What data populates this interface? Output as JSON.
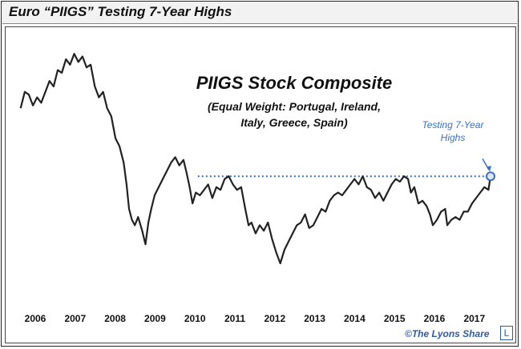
{
  "page": {
    "title": "Euro “PIIGS” Testing 7-Year Highs",
    "credit": "©The Lyons Share",
    "logo_letter": "L"
  },
  "chart_data": {
    "type": "line",
    "title": "PIIGS Stock Composite",
    "subtitle_line1": "(Equal Weight: Portugal, Ireland,",
    "subtitle_line2": "Italy, Greece, Spain)",
    "annotation_line1": "Testing 7-Year",
    "annotation_line2": "Highs",
    "xlabel": "",
    "ylabel": "",
    "xlim": [
      2006.0,
      2017.9
    ],
    "ylim": [
      0,
      100
    ],
    "grid": false,
    "x_ticks": [
      "2006",
      "2007",
      "2008",
      "2009",
      "2010",
      "2011",
      "2012",
      "2013",
      "2014",
      "2015",
      "2016",
      "2017"
    ],
    "reference_level": 47,
    "series": [
      {
        "name": "PIIGS Stock Composite",
        "color": "#222222",
        "points": [
          [
            2006.15,
            72
          ],
          [
            2006.25,
            78
          ],
          [
            2006.35,
            77
          ],
          [
            2006.45,
            73
          ],
          [
            2006.55,
            76
          ],
          [
            2006.65,
            74
          ],
          [
            2006.75,
            78
          ],
          [
            2006.85,
            82
          ],
          [
            2006.95,
            80
          ],
          [
            2007.05,
            86
          ],
          [
            2007.15,
            85
          ],
          [
            2007.25,
            90
          ],
          [
            2007.35,
            88
          ],
          [
            2007.45,
            92
          ],
          [
            2007.55,
            89
          ],
          [
            2007.65,
            91
          ],
          [
            2007.75,
            87
          ],
          [
            2007.85,
            88
          ],
          [
            2007.95,
            80
          ],
          [
            2008.05,
            76
          ],
          [
            2008.15,
            78
          ],
          [
            2008.25,
            72
          ],
          [
            2008.35,
            69
          ],
          [
            2008.45,
            61
          ],
          [
            2008.55,
            58
          ],
          [
            2008.65,
            52
          ],
          [
            2008.72,
            44
          ],
          [
            2008.78,
            35
          ],
          [
            2008.85,
            31
          ],
          [
            2008.92,
            29
          ],
          [
            2009.0,
            32
          ],
          [
            2009.1,
            27
          ],
          [
            2009.18,
            22
          ],
          [
            2009.25,
            30
          ],
          [
            2009.32,
            35
          ],
          [
            2009.4,
            40
          ],
          [
            2009.5,
            43
          ],
          [
            2009.6,
            46
          ],
          [
            2009.7,
            49
          ],
          [
            2009.8,
            52
          ],
          [
            2009.9,
            54
          ],
          [
            2010.0,
            51
          ],
          [
            2010.1,
            53
          ],
          [
            2010.18,
            48
          ],
          [
            2010.25,
            43
          ],
          [
            2010.32,
            37
          ],
          [
            2010.4,
            41
          ],
          [
            2010.5,
            40
          ],
          [
            2010.6,
            42
          ],
          [
            2010.7,
            44
          ],
          [
            2010.8,
            39
          ],
          [
            2010.9,
            43
          ],
          [
            2011.0,
            42
          ],
          [
            2011.1,
            46
          ],
          [
            2011.2,
            47
          ],
          [
            2011.3,
            44
          ],
          [
            2011.4,
            42
          ],
          [
            2011.5,
            43
          ],
          [
            2011.6,
            35
          ],
          [
            2011.68,
            29
          ],
          [
            2011.75,
            30
          ],
          [
            2011.85,
            26
          ],
          [
            2011.95,
            29
          ],
          [
            2012.05,
            27
          ],
          [
            2012.15,
            30
          ],
          [
            2012.25,
            24
          ],
          [
            2012.35,
            19
          ],
          [
            2012.45,
            15
          ],
          [
            2012.55,
            20
          ],
          [
            2012.65,
            23
          ],
          [
            2012.75,
            26
          ],
          [
            2012.85,
            29
          ],
          [
            2012.95,
            30
          ],
          [
            2013.05,
            33
          ],
          [
            2013.15,
            28
          ],
          [
            2013.25,
            29
          ],
          [
            2013.35,
            32
          ],
          [
            2013.45,
            35
          ],
          [
            2013.55,
            34
          ],
          [
            2013.65,
            38
          ],
          [
            2013.75,
            40
          ],
          [
            2013.85,
            41
          ],
          [
            2013.95,
            40
          ],
          [
            2014.05,
            42
          ],
          [
            2014.15,
            44
          ],
          [
            2014.25,
            46
          ],
          [
            2014.35,
            44
          ],
          [
            2014.45,
            47
          ],
          [
            2014.55,
            43
          ],
          [
            2014.65,
            42
          ],
          [
            2014.75,
            39
          ],
          [
            2014.85,
            41
          ],
          [
            2014.95,
            38
          ],
          [
            2015.05,
            41
          ],
          [
            2015.15,
            44
          ],
          [
            2015.25,
            46
          ],
          [
            2015.35,
            45
          ],
          [
            2015.45,
            47
          ],
          [
            2015.55,
            46
          ],
          [
            2015.62,
            41
          ],
          [
            2015.7,
            43
          ],
          [
            2015.8,
            37
          ],
          [
            2015.9,
            38
          ],
          [
            2016.0,
            36
          ],
          [
            2016.08,
            33
          ],
          [
            2016.15,
            29
          ],
          [
            2016.25,
            31
          ],
          [
            2016.35,
            34
          ],
          [
            2016.45,
            35
          ],
          [
            2016.5,
            29
          ],
          [
            2016.6,
            31
          ],
          [
            2016.7,
            32
          ],
          [
            2016.8,
            31
          ],
          [
            2016.9,
            34
          ],
          [
            2017.0,
            34
          ],
          [
            2017.1,
            37
          ],
          [
            2017.2,
            39
          ],
          [
            2017.3,
            41
          ],
          [
            2017.4,
            43
          ],
          [
            2017.5,
            42
          ],
          [
            2017.55,
            47
          ]
        ]
      }
    ],
    "annotations": [
      {
        "label": "Testing 7-Year Highs",
        "x": 2017.55,
        "y": 47,
        "color": "#3a6fc0"
      }
    ]
  }
}
